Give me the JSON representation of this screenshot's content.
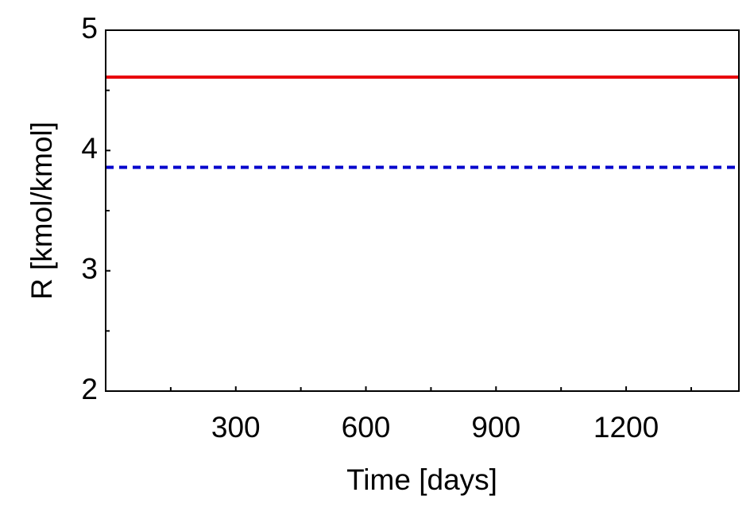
{
  "chart_data": {
    "type": "line",
    "x_label": "Time [days]",
    "y_label": "R [kmol/kmol]",
    "x": [
      0,
      1460
    ],
    "series": [
      {
        "color": "#e8000b",
        "style": "solid",
        "values": [
          4.61,
          4.61
        ]
      },
      {
        "color": "#0000cc",
        "style": "dashed",
        "values": [
          3.86,
          3.86
        ]
      }
    ],
    "xlim": [
      0,
      1460
    ],
    "xticks": [
      300,
      600,
      900,
      1200
    ],
    "xminorticks": [
      150,
      450,
      750,
      1050,
      1350
    ],
    "ylim": [
      2,
      5
    ],
    "yticks": [
      2,
      3,
      4,
      5
    ],
    "yminorticks": [
      2.5,
      3.5,
      4.5
    ],
    "grid": false
  }
}
